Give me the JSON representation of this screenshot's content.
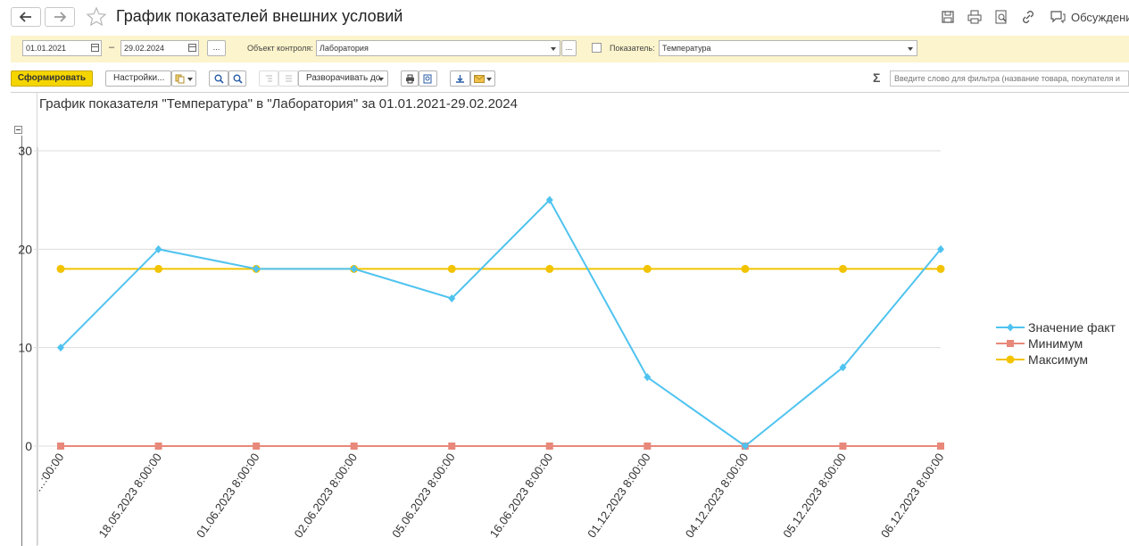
{
  "window": {
    "title": "График показателей внешних условий",
    "discussions_label": "Обсуждени"
  },
  "filters": {
    "date_from": "01.01.2021",
    "date_separator": "–",
    "date_to": "29.02.2024",
    "ellipsis": "...",
    "control_object_label": "Объект контроля:",
    "control_object_value": "Лаборатория",
    "indicator_label": "Показатель:",
    "indicator_value": "Температура",
    "indicator_checkbox_checked": false
  },
  "toolbar": {
    "generate_label": "Сформировать",
    "settings_label": "Настройки...",
    "expand_label": "Разворачивать до",
    "search_placeholder": "Введите слово для фильтра (название товара, покупателя и",
    "sigma": "Σ"
  },
  "colors": {
    "accent_yellow": "#f5d500",
    "filter_bg": "#fcf4cc",
    "series_fact": "#4fc3f0",
    "series_min": "#e8887a",
    "series_max": "#f2c300"
  },
  "chart_data": {
    "type": "line",
    "title": "График показателя \"Температура\" в \"Лаборатория\" за 01.01.2021-29.02.2024",
    "categories": [
      "…:00:00",
      "18.05.2023 8:00:00",
      "01.06.2023 8:00:00",
      "02.06.2023 8:00:00",
      "05.06.2023 8:00:00",
      "16.06.2023 8:00:00",
      "01.12.2023 8:00:00",
      "04.12.2023 8:00:00",
      "05.12.2023 8:00:00",
      "06.12.2023 8:00:00"
    ],
    "first_category_visible": "…:00:00",
    "yticks": [
      0,
      10,
      20,
      30
    ],
    "ylim": [
      0,
      30
    ],
    "grid": true,
    "legend_position": "right",
    "series": [
      {
        "name": "Значение факт",
        "color": "#4fc3f0",
        "marker": "diamond",
        "values": [
          10,
          20,
          18,
          18,
          15,
          25,
          7,
          0,
          8,
          20
        ]
      },
      {
        "name": "Минимум",
        "color": "#e8887a",
        "marker": "square",
        "values": [
          0,
          0,
          0,
          0,
          0,
          0,
          0,
          0,
          0,
          0
        ]
      },
      {
        "name": "Максимум",
        "color": "#f2c300",
        "marker": "circle",
        "values": [
          18,
          18,
          18,
          18,
          18,
          18,
          18,
          18,
          18,
          18
        ]
      }
    ]
  }
}
